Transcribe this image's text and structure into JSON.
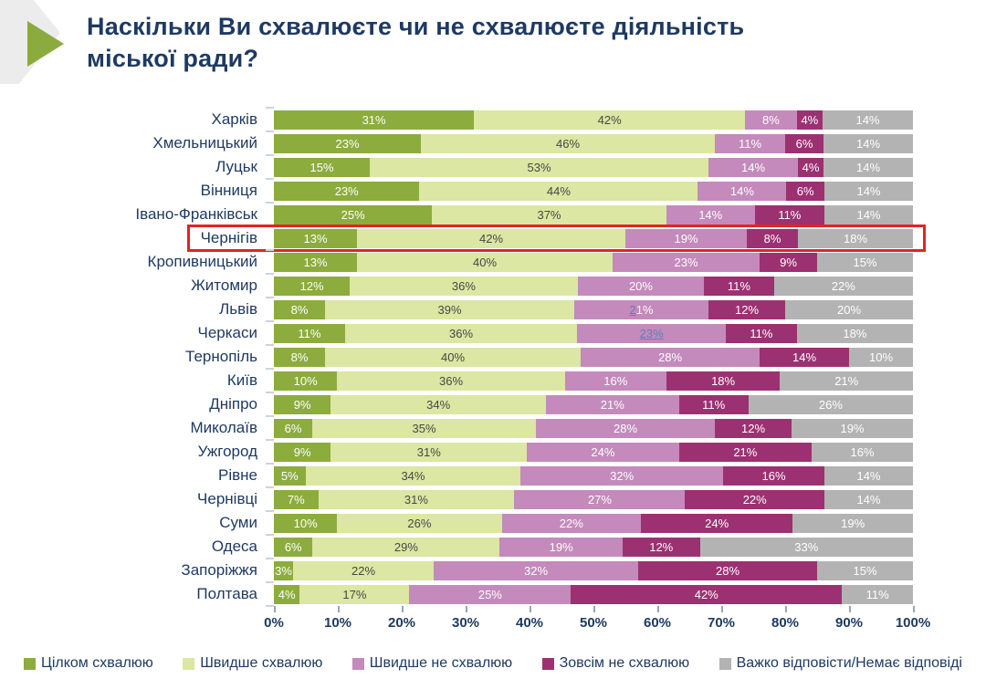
{
  "title": "Наскільки Ви схвалюєте чи не схвалюєте діяльність міської ради?",
  "colors": {
    "approve_full": "#8cac3e",
    "approve_rather": "#dbe7a2",
    "disapprove_rather": "#c48abc",
    "disapprove_full": "#9c3172",
    "no_answer": "#b3b3b3",
    "title_text": "#1e3a63",
    "highlight_border": "#e32421",
    "accent_green": "#8cab3f",
    "deco_gray": "#ececec"
  },
  "chart_data": {
    "type": "bar",
    "orientation": "horizontal",
    "stacked": true,
    "unit": "%",
    "title": "Наскільки Ви схвалюєте чи не схвалюєте діяльність міської ради?",
    "xlabel": "",
    "ylabel": "",
    "xlim": [
      0,
      100
    ],
    "grid": false,
    "legend_position": "bottom",
    "highlight_category": "Чернігів",
    "categories": [
      "Харків",
      "Хмельницький",
      "Луцьк",
      "Вінниця",
      "Івано-Франківськ",
      "Чернігів",
      "Кропивницький",
      "Житомир",
      "Львів",
      "Черкаси",
      "Тернопіль",
      "Київ",
      "Дніпро",
      "Миколаїв",
      "Ужгород",
      "Рівне",
      "Чернівці",
      "Суми",
      "Одеса",
      "Запоріжжя",
      "Полтава"
    ],
    "series": [
      {
        "name": "Цілком схвалюю",
        "color": "#8cac3e",
        "values": [
          31,
          23,
          15,
          23,
          25,
          13,
          13,
          12,
          8,
          11,
          8,
          10,
          9,
          6,
          9,
          5,
          7,
          10,
          6,
          3,
          4
        ]
      },
      {
        "name": "Швидше схвалюю",
        "color": "#dbe7a2",
        "values": [
          42,
          46,
          53,
          44,
          37,
          42,
          40,
          36,
          39,
          36,
          40,
          36,
          34,
          35,
          31,
          34,
          31,
          26,
          29,
          22,
          17
        ]
      },
      {
        "name": "Швидше не схвалюю",
        "color": "#c48abc",
        "values": [
          8,
          11,
          14,
          14,
          14,
          19,
          23,
          20,
          21,
          23,
          28,
          16,
          21,
          28,
          24,
          32,
          27,
          22,
          19,
          32,
          25
        ]
      },
      {
        "name": "Зовсім не схвалюю",
        "color": "#9c3172",
        "values": [
          4,
          6,
          4,
          6,
          11,
          8,
          9,
          11,
          12,
          11,
          14,
          18,
          11,
          12,
          21,
          16,
          22,
          24,
          12,
          28,
          42
        ]
      },
      {
        "name": "Важко відповісти/Немає відповіді",
        "color": "#b3b3b3",
        "values": [
          14,
          14,
          14,
          14,
          14,
          18,
          15,
          22,
          20,
          18,
          10,
          21,
          26,
          19,
          16,
          14,
          14,
          19,
          33,
          15,
          11
        ]
      }
    ],
    "x_axis_ticks": [
      "0%",
      "10%",
      "20%",
      "30%",
      "40%",
      "50%",
      "60%",
      "70%",
      "80%",
      "90%",
      "100%"
    ],
    "label_artifacts": [
      {
        "category": "Львів",
        "series_index": 2,
        "style": "link-first-char"
      },
      {
        "category": "Черкаси",
        "series_index": 2,
        "style": "link-full"
      }
    ]
  },
  "legend": {
    "items": [
      "Цілком схвалюю",
      "Швидше схвалюю",
      "Швидше не схвалюю",
      "Зовсім не схвалюю",
      "Важко відповісти/Немає відповіді"
    ]
  }
}
